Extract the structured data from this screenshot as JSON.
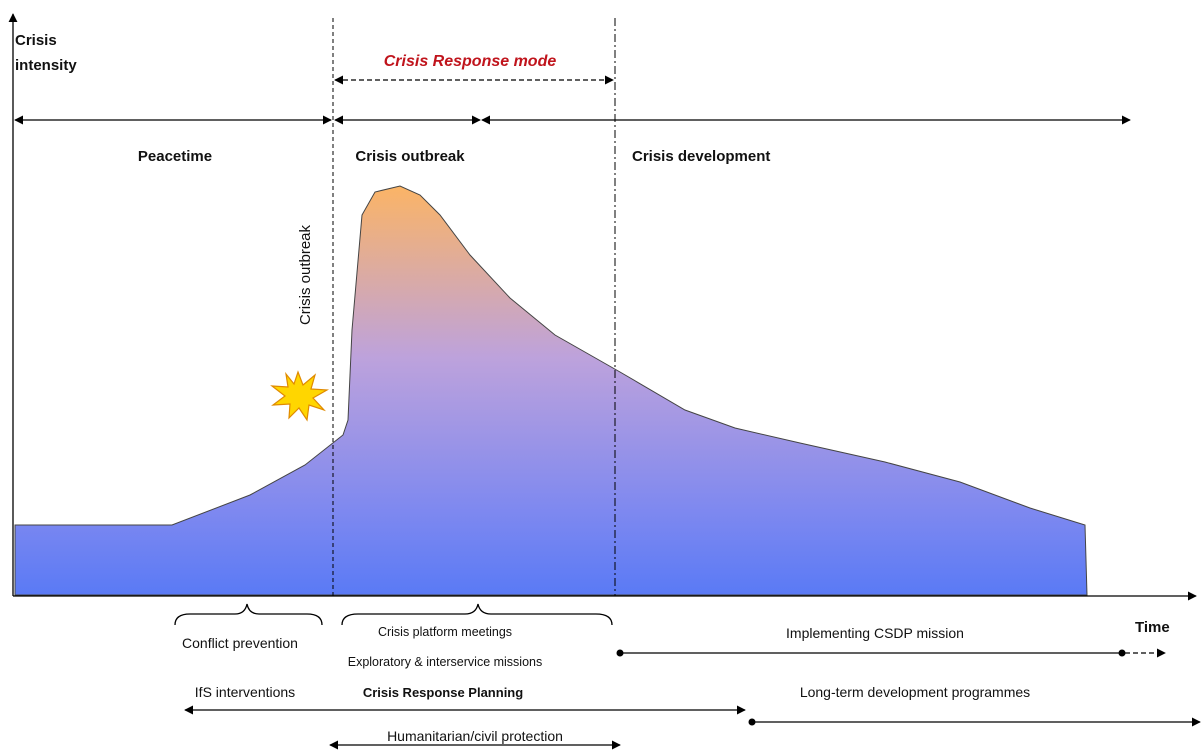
{
  "axes": {
    "y_label": [
      "Crisis",
      "intensity"
    ],
    "x_label": "Time"
  },
  "mode": "Crisis Response mode",
  "phases": [
    "Peacetime",
    "Crisis outbreak",
    "Crisis development"
  ],
  "event": "Crisis outbreak",
  "activities": {
    "conflict_prevention": "Conflict prevention",
    "platform": "Crisis platform meetings",
    "missions": "Exploratory & interservice missions",
    "csdp": "Implementing CSDP mission",
    "ifs": "IfS interventions",
    "planning": "Crisis Response Planning",
    "long_term": "Long-term development programmes",
    "humanitarian": "Humanitarian/civil protection"
  }
}
